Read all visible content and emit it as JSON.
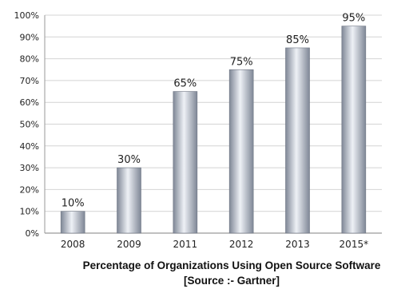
{
  "chart_data": {
    "type": "bar",
    "categories": [
      "2008",
      "2009",
      "2011",
      "2012",
      "2013",
      "2015*"
    ],
    "values": [
      10,
      30,
      65,
      75,
      85,
      95
    ],
    "data_labels": [
      "10%",
      "30%",
      "65%",
      "75%",
      "85%",
      "95%"
    ],
    "y_ticks": [
      "0%",
      "10%",
      "20%",
      "30%",
      "40%",
      "50%",
      "60%",
      "70%",
      "80%",
      "90%",
      "100%"
    ],
    "ylim": [
      0,
      100
    ],
    "title": "Percentage of Organizations Using Open Source Software",
    "subtitle": "[Source :- Gartner]",
    "xlabel": "",
    "ylabel": "",
    "grid": true,
    "legend": "none",
    "colors": {
      "bar_dark": "#7f8796",
      "bar_light": "#eef1f6",
      "grid": "#d4d4d4",
      "axis": "#9a9a9a"
    }
  }
}
